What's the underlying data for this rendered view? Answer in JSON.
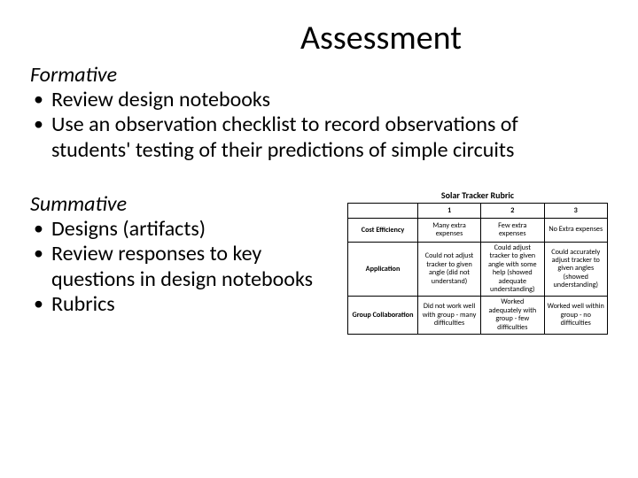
{
  "title": "Assessment",
  "formative": {
    "heading": "Formative",
    "bullets": [
      "Review design notebooks",
      "Use an observation checklist to record observations of students' testing of their predictions of simple circuits"
    ]
  },
  "summative": {
    "heading": "Summative",
    "bullets": [
      "Designs (artifacts)",
      "Review responses to key questions in design notebooks",
      "Rubrics"
    ]
  },
  "rubric": {
    "title": "Solar Tracker Rubric",
    "columns": [
      "",
      "1",
      "2",
      "3"
    ],
    "rows": [
      {
        "header": "Cost Efficiency",
        "cells": [
          "Many extra expenses",
          "Few extra expenses",
          "No Extra expenses"
        ]
      },
      {
        "header": "Application",
        "cells": [
          "Could not adjust tracker to given angle (did not understand)",
          "Could adjust tracker to given angle with some help (showed adequate understanding)",
          "Could accurately adjust tracker to given angles (showed understanding)"
        ]
      },
      {
        "header": "Group Collaboration",
        "cells": [
          "Did not work well with group - many difficulties",
          "Worked adequately with group - few difficulties",
          "Worked well within group - no difficulties"
        ]
      }
    ],
    "style": {
      "type": "table",
      "border_color": "#000000",
      "background_color": "#ffffff",
      "title_fontsize": 10,
      "title_fontweight": "bold",
      "header_fontweight": "bold",
      "cell_fontsize": 8,
      "text_color": "#000000"
    }
  },
  "style": {
    "background_color": "#ffffff",
    "text_color": "#000000",
    "title_fontsize": 38,
    "heading_fontsize": 24,
    "body_fontsize": 24,
    "heading_style": "italic",
    "font_family": "Calibri"
  }
}
